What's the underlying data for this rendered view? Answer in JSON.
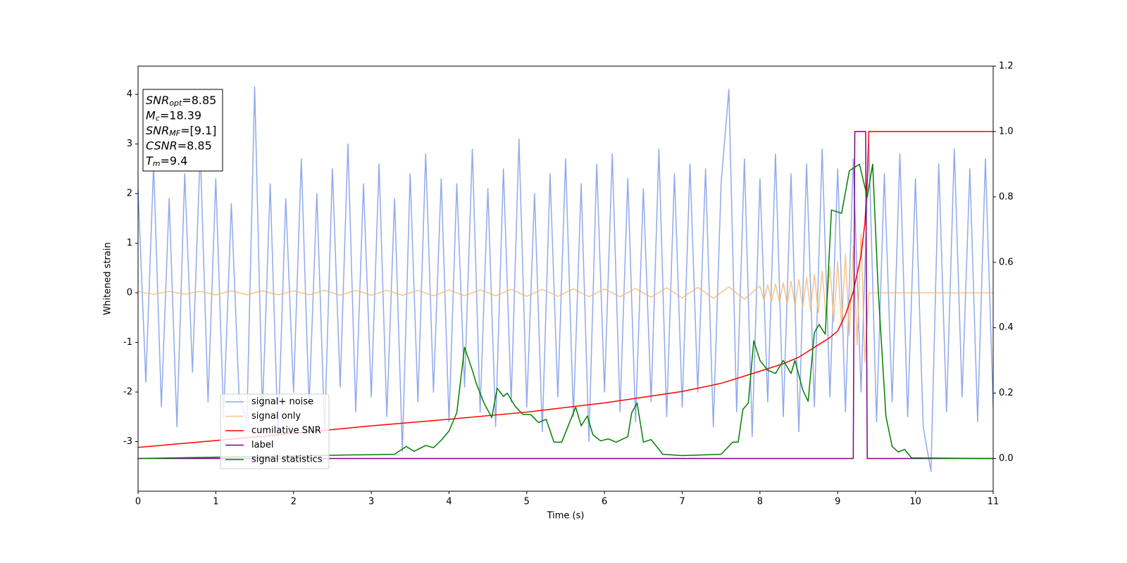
{
  "chart_data": {
    "type": "line",
    "xlabel": "Time (s)",
    "ylabel": "Whitened strain",
    "xlim": [
      0,
      11
    ],
    "xticks": [
      0,
      1,
      2,
      3,
      4,
      5,
      6,
      7,
      8,
      9,
      10,
      11
    ],
    "ylim": [
      -4.0,
      4.57
    ],
    "yticks": [
      -3,
      -2,
      -1,
      0,
      1,
      2,
      3,
      4
    ],
    "y2lim": [
      -0.1,
      1.2
    ],
    "y2ticks": [
      {
        "value": 0,
        "label": "0.0"
      },
      0.2,
      0.4,
      0.6,
      0.8,
      {
        "value": 1,
        "label": "1.0"
      },
      1.2
    ],
    "annotation": [
      {
        "base": "SNR",
        "sub": "opt",
        "text": "=8.85"
      },
      {
        "base": "M",
        "sub": "c",
        "text": "=18.39"
      },
      {
        "base": "SNR",
        "sub": "MF",
        "text": "=[9.1]"
      },
      {
        "base": "CSNR",
        "text": "=8.85"
      },
      {
        "base": "T",
        "sub": "m",
        "text": "=9.4"
      }
    ],
    "series": [
      {
        "name": "signal+ noise",
        "color": "#7694e6",
        "x": [
          0,
          0.1,
          0.2,
          0.3,
          0.4,
          0.5,
          0.6,
          0.7,
          0.8,
          0.9,
          1,
          1.1,
          1.2,
          1.3,
          1.4,
          1.5,
          1.6,
          1.7,
          1.8,
          1.9,
          2,
          2.1,
          2.2,
          2.3,
          2.4,
          2.5,
          2.6,
          2.7,
          2.8,
          2.9,
          3,
          3.1,
          3.2,
          3.3,
          3.4,
          3.5,
          3.6,
          3.7,
          3.8,
          3.9,
          4,
          4.1,
          4.2,
          4.3,
          4.4,
          4.5,
          4.6,
          4.7,
          4.8,
          4.9,
          5,
          5.1,
          5.2,
          5.3,
          5.4,
          5.5,
          5.6,
          5.7,
          5.8,
          5.9,
          6,
          6.1,
          6.2,
          6.3,
          6.4,
          6.5,
          6.6,
          6.7,
          6.8,
          6.9,
          7,
          7.1,
          7.2,
          7.3,
          7.4,
          7.5,
          7.6,
          7.7,
          7.8,
          7.9,
          8,
          8.1,
          8.2,
          8.3,
          8.4,
          8.5,
          8.6,
          8.7,
          8.8,
          8.9,
          9,
          9.1,
          9.2,
          9.3,
          9.4,
          9.5,
          9.6,
          9.7,
          9.8,
          9.9,
          10,
          10.1,
          10.2,
          10.3,
          10.4,
          10.5,
          10.6,
          10.7,
          10.8,
          10.9,
          11
        ],
        "values": [
          2.1,
          -1.8,
          2.6,
          -2.3,
          1.9,
          -2.7,
          2.4,
          -1.6,
          2.9,
          -2.2,
          2.3,
          -2.5,
          1.8,
          -2.1,
          -2.6,
          4.15,
          -2.4,
          2.2,
          -2.9,
          1.9,
          -2.0,
          2.7,
          -2.3,
          2.0,
          -2.8,
          2.5,
          -1.9,
          3.0,
          -2.4,
          2.2,
          -2.1,
          2.6,
          -2.5,
          1.9,
          -3.2,
          2.4,
          -2.2,
          2.8,
          -2.0,
          2.3,
          -2.6,
          2.2,
          -1.9,
          2.9,
          -2.4,
          2.1,
          -2.7,
          2.5,
          -2.2,
          3.1,
          -2.3,
          2.0,
          -2.8,
          2.4,
          -2.1,
          2.7,
          -2.5,
          2.2,
          -3.0,
          2.6,
          -2.0,
          2.8,
          -2.4,
          2.3,
          -2.6,
          2.1,
          -2.2,
          2.9,
          -2.5,
          2.4,
          -2.3,
          2.6,
          -2.0,
          2.5,
          -2.7,
          2.2,
          4.1,
          -2.4,
          2.7,
          -2.9,
          2.3,
          -2.2,
          2.8,
          -2.5,
          2.4,
          -2.8,
          2.6,
          -2.3,
          2.9,
          -2.1,
          2.5,
          -2.4,
          2.7,
          -2.0,
          3.0,
          -2.6,
          2.4,
          -2.2,
          2.8,
          -2.5,
          2.3,
          -2.7,
          -3.6,
          2.6,
          -2.4,
          2.9,
          -2.1,
          2.5,
          -2.6,
          2.7,
          -2.3
        ]
      },
      {
        "name": "signal only",
        "color": "#f2b76a",
        "x": [
          0,
          0.2,
          0.4,
          0.6,
          0.8,
          1,
          1.2,
          1.4,
          1.6,
          1.8,
          2,
          2.2,
          2.4,
          2.6,
          2.8,
          3,
          3.2,
          3.4,
          3.6,
          3.8,
          4,
          4.2,
          4.4,
          4.6,
          4.8,
          5,
          5.2,
          5.4,
          5.6,
          5.8,
          6,
          6.2,
          6.4,
          6.6,
          6.8,
          7,
          7.2,
          7.4,
          7.6,
          7.8,
          8,
          8.05,
          8.1,
          8.15,
          8.2,
          8.25,
          8.3,
          8.35,
          8.4,
          8.45,
          8.5,
          8.55,
          8.6,
          8.65,
          8.7,
          8.75,
          8.8,
          8.85,
          8.9,
          8.95,
          9,
          9.05,
          9.1,
          9.15,
          9.2,
          9.25,
          9.3,
          9.35,
          9.4,
          11
        ],
        "values": [
          0.03,
          -0.03,
          0.03,
          -0.03,
          0.03,
          -0.04,
          0.04,
          -0.04,
          0.04,
          -0.04,
          0.04,
          -0.04,
          0.05,
          -0.05,
          0.05,
          -0.05,
          0.05,
          -0.05,
          0.05,
          -0.06,
          0.06,
          -0.06,
          0.06,
          -0.06,
          0.07,
          -0.07,
          0.07,
          -0.07,
          0.08,
          -0.08,
          0.08,
          -0.08,
          0.09,
          -0.09,
          0.1,
          -0.1,
          0.11,
          -0.11,
          0.12,
          -0.13,
          0.14,
          -0.15,
          0.16,
          -0.17,
          0.18,
          -0.19,
          0.2,
          -0.22,
          0.23,
          -0.25,
          0.27,
          -0.29,
          0.31,
          -0.34,
          0.37,
          -0.4,
          0.44,
          -0.48,
          0.53,
          -0.58,
          0.64,
          -0.7,
          0.78,
          -0.86,
          0.95,
          -1.05,
          1.2,
          -1.4,
          0,
          0
        ]
      },
      {
        "name": "cumilative SNR",
        "color": "#ff0000",
        "axis": "y2",
        "x": [
          0,
          1,
          2,
          3,
          4,
          5,
          6,
          7,
          7.5,
          8,
          8.3,
          8.5,
          8.7,
          8.9,
          9,
          9.1,
          9.2,
          9.3,
          9.35,
          9.38,
          9.4,
          11
        ],
        "values": [
          0.034,
          0.055,
          0.077,
          0.1,
          0.12,
          0.142,
          0.17,
          0.205,
          0.23,
          0.267,
          0.29,
          0.31,
          0.34,
          0.37,
          0.39,
          0.44,
          0.51,
          0.62,
          0.72,
          0.85,
          1.0,
          1.0
        ]
      },
      {
        "name": "label",
        "color": "#800080",
        "axis": "y2",
        "x": [
          0,
          9.2,
          9.22,
          9.36,
          9.38,
          11
        ],
        "values": [
          0,
          0,
          1,
          1,
          0,
          0
        ]
      },
      {
        "name": "signal statistics",
        "color": "#008000",
        "axis": "y2",
        "x": [
          0,
          2.5,
          3.3,
          3.45,
          3.55,
          3.7,
          3.8,
          3.9,
          4.0,
          4.1,
          4.2,
          4.3,
          4.35,
          4.45,
          4.55,
          4.62,
          4.7,
          4.75,
          4.85,
          4.95,
          5.05,
          5.15,
          5.25,
          5.35,
          5.45,
          5.55,
          5.63,
          5.7,
          5.78,
          5.85,
          5.95,
          6.05,
          6.15,
          6.3,
          6.35,
          6.42,
          6.5,
          6.6,
          6.75,
          7.0,
          7.5,
          7.65,
          7.72,
          7.78,
          7.85,
          7.92,
          8.0,
          8.1,
          8.2,
          8.3,
          8.4,
          8.45,
          8.55,
          8.62,
          8.7,
          8.76,
          8.84,
          8.92,
          9.05,
          9.15,
          9.28,
          9.38,
          9.45,
          9.52,
          9.62,
          9.7,
          9.78,
          9.86,
          9.95,
          11
        ],
        "values": [
          0,
          0.01,
          0.013,
          0.037,
          0.022,
          0.04,
          0.033,
          0.056,
          0.084,
          0.14,
          0.34,
          0.27,
          0.23,
          0.17,
          0.125,
          0.215,
          0.19,
          0.2,
          0.16,
          0.135,
          0.135,
          0.11,
          0.12,
          0.05,
          0.05,
          0.11,
          0.157,
          0.1,
          0.13,
          0.073,
          0.054,
          0.06,
          0.05,
          0.067,
          0.14,
          0.17,
          0.05,
          0.058,
          0.013,
          0.009,
          0.013,
          0.05,
          0.05,
          0.15,
          0.17,
          0.36,
          0.3,
          0.27,
          0.26,
          0.3,
          0.26,
          0.3,
          0.21,
          0.175,
          0.385,
          0.41,
          0.38,
          0.76,
          0.75,
          0.88,
          0.9,
          0.8,
          0.9,
          0.52,
          0.13,
          0.037,
          0.02,
          0.028,
          0.002,
          0
        ]
      }
    ]
  }
}
